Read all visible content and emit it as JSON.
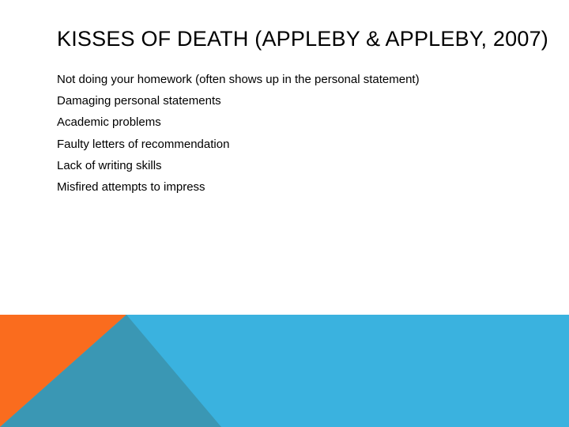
{
  "slide": {
    "title": "KISSES OF DEATH (APPLEBY & APPLEBY, 2007)",
    "bullets": [
      "Not doing your homework (often shows up in the personal statement)",
      "Damaging personal statements",
      "Academic problems",
      "Faulty letters of recommendation",
      "Lack of writing skills",
      "Misfired attempts to impress"
    ]
  },
  "colors": {
    "band_blue": "#3ab2df",
    "band_orange": "#fa6c1e",
    "band_overlap_teal": "#3a97b4"
  }
}
